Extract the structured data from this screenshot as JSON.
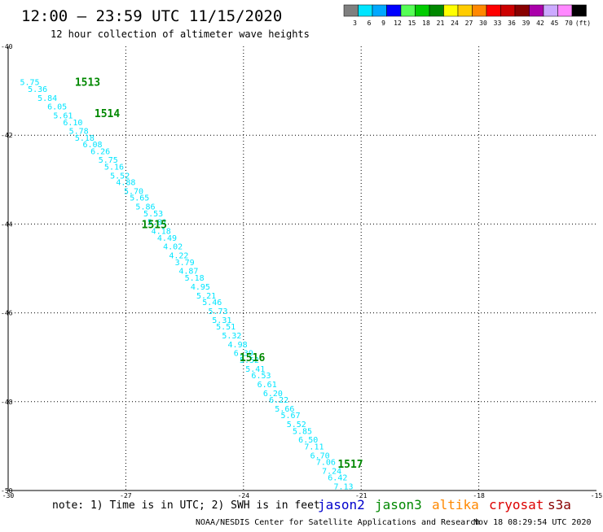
{
  "header": {
    "title": "12:00 – 23:59 UTC 11/15/2020",
    "subtitle": "12 hour collection of altimeter wave heights"
  },
  "color_scale": {
    "colors": [
      "#7f7f7f",
      "#00e5ff",
      "#00a8ff",
      "#0000ff",
      "#55ff55",
      "#00cc00",
      "#008800",
      "#ffff00",
      "#ffcc00",
      "#ff8800",
      "#ff0000",
      "#cc0000",
      "#880000",
      "#aa00aa",
      "#ccaaff",
      "#ff88ff",
      "#000000"
    ],
    "labels": [
      "3",
      "6",
      "9",
      "12",
      "15",
      "18",
      "21",
      "24",
      "27",
      "30",
      "33",
      "36",
      "39",
      "42",
      "45",
      "70",
      "(ft)"
    ]
  },
  "map": {
    "x_ticks": [
      "-30",
      "-27",
      "-24",
      "-21",
      "-18",
      "-15"
    ],
    "y_ticks": [
      "-40",
      "-42",
      "-44",
      "-46",
      "-48",
      "-50"
    ],
    "lon_range": [
      -30,
      -15
    ],
    "lat_range": [
      -50,
      -40
    ],
    "grid": "dotted"
  },
  "chart_data": {
    "type": "scatter",
    "x": "longitude",
    "y": "latitude",
    "value_color": "#00e5ff",
    "track_label_color": "#008800",
    "track_labels": [
      {
        "text": "1513",
        "lon": -28.3,
        "lat": -40.8
      },
      {
        "text": "1514",
        "lon": -27.8,
        "lat": -41.5
      },
      {
        "text": "1515",
        "lon": -26.6,
        "lat": -44.0
      },
      {
        "text": "1516",
        "lon": -24.1,
        "lat": -47.0
      },
      {
        "text": "1517",
        "lon": -21.6,
        "lat": -49.4
      }
    ],
    "points": [
      {
        "lon": -29.7,
        "lat": -40.8,
        "swh": "5.75"
      },
      {
        "lon": -29.5,
        "lat": -40.95,
        "swh": "5.36"
      },
      {
        "lon": -29.25,
        "lat": -41.15,
        "swh": "5.84"
      },
      {
        "lon": -29.0,
        "lat": -41.35,
        "swh": "6.05"
      },
      {
        "lon": -28.85,
        "lat": -41.55,
        "swh": "5.61"
      },
      {
        "lon": -28.6,
        "lat": -41.7,
        "swh": "6.10"
      },
      {
        "lon": -28.45,
        "lat": -41.9,
        "swh": "5.78"
      },
      {
        "lon": -28.3,
        "lat": -42.05,
        "swh": "5.18"
      },
      {
        "lon": -28.1,
        "lat": -42.2,
        "swh": "6.08"
      },
      {
        "lon": -27.9,
        "lat": -42.35,
        "swh": "6.26"
      },
      {
        "lon": -27.7,
        "lat": -42.55,
        "swh": "5.75"
      },
      {
        "lon": -27.55,
        "lat": -42.7,
        "swh": "5.16"
      },
      {
        "lon": -27.4,
        "lat": -42.9,
        "swh": "5.52"
      },
      {
        "lon": -27.25,
        "lat": -43.05,
        "swh": "4.88"
      },
      {
        "lon": -27.05,
        "lat": -43.25,
        "swh": "5.70"
      },
      {
        "lon": -26.9,
        "lat": -43.4,
        "swh": "5.65"
      },
      {
        "lon": -26.75,
        "lat": -43.6,
        "swh": "5.86"
      },
      {
        "lon": -26.55,
        "lat": -43.75,
        "swh": "5.53"
      },
      {
        "lon": -26.45,
        "lat": -43.95,
        "swh": "5.81"
      },
      {
        "lon": -26.35,
        "lat": -44.15,
        "swh": "4.18"
      },
      {
        "lon": -26.2,
        "lat": -44.3,
        "swh": "4.49"
      },
      {
        "lon": -26.05,
        "lat": -44.5,
        "swh": "4.02"
      },
      {
        "lon": -25.9,
        "lat": -44.7,
        "swh": "4.22"
      },
      {
        "lon": -25.75,
        "lat": -44.85,
        "swh": "3.79"
      },
      {
        "lon": -25.65,
        "lat": -45.05,
        "swh": "4.87"
      },
      {
        "lon": -25.5,
        "lat": -45.2,
        "swh": "5.18"
      },
      {
        "lon": -25.35,
        "lat": -45.4,
        "swh": "4.95"
      },
      {
        "lon": -25.2,
        "lat": -45.6,
        "swh": "5.21"
      },
      {
        "lon": -25.05,
        "lat": -45.75,
        "swh": "5.46"
      },
      {
        "lon": -24.9,
        "lat": -45.95,
        "swh": "5.73"
      },
      {
        "lon": -24.8,
        "lat": -46.15,
        "swh": "5.31"
      },
      {
        "lon": -24.7,
        "lat": -46.3,
        "swh": "5.51"
      },
      {
        "lon": -24.55,
        "lat": -46.5,
        "swh": "5.32"
      },
      {
        "lon": -24.4,
        "lat": -46.7,
        "swh": "4.98"
      },
      {
        "lon": -24.25,
        "lat": -46.9,
        "swh": "6.39"
      },
      {
        "lon": -24.1,
        "lat": -47.05,
        "swh": "5.52"
      },
      {
        "lon": -23.95,
        "lat": -47.25,
        "swh": "5.41"
      },
      {
        "lon": -23.8,
        "lat": -47.4,
        "swh": "6.53"
      },
      {
        "lon": -23.65,
        "lat": -47.6,
        "swh": "6.61"
      },
      {
        "lon": -23.5,
        "lat": -47.8,
        "swh": "6.20"
      },
      {
        "lon": -23.35,
        "lat": -47.95,
        "swh": "6.22"
      },
      {
        "lon": -23.2,
        "lat": -48.15,
        "swh": "5.66"
      },
      {
        "lon": -23.05,
        "lat": -48.3,
        "swh": "5.67"
      },
      {
        "lon": -22.9,
        "lat": -48.5,
        "swh": "5.52"
      },
      {
        "lon": -22.75,
        "lat": -48.65,
        "swh": "5.85"
      },
      {
        "lon": -22.6,
        "lat": -48.85,
        "swh": "6.50"
      },
      {
        "lon": -22.45,
        "lat": -49.0,
        "swh": "7.11"
      },
      {
        "lon": -22.3,
        "lat": -49.2,
        "swh": "6.70"
      },
      {
        "lon": -22.15,
        "lat": -49.35,
        "swh": "7.06"
      },
      {
        "lon": -22.0,
        "lat": -49.55,
        "swh": "7.24"
      },
      {
        "lon": -21.85,
        "lat": -49.7,
        "swh": "6.42"
      },
      {
        "lon": -21.7,
        "lat": -49.9,
        "swh": "7.13"
      }
    ]
  },
  "note": "note: 1) Time is in UTC; 2) SWH is in feet",
  "satellites": [
    {
      "name": "jason2",
      "color": "#0000cc"
    },
    {
      "name": "jason3",
      "color": "#008800"
    },
    {
      "name": "altika",
      "color": "#ff8800"
    },
    {
      "name": "cryosat",
      "color": "#dd0000"
    },
    {
      "name": "s3a",
      "color": "#880000"
    }
  ],
  "footer": {
    "credit": "NOAA/NESDIS Center for Satellite Applications and Research",
    "timestamp": "Nov 18 08:29:54 UTC 2020"
  }
}
